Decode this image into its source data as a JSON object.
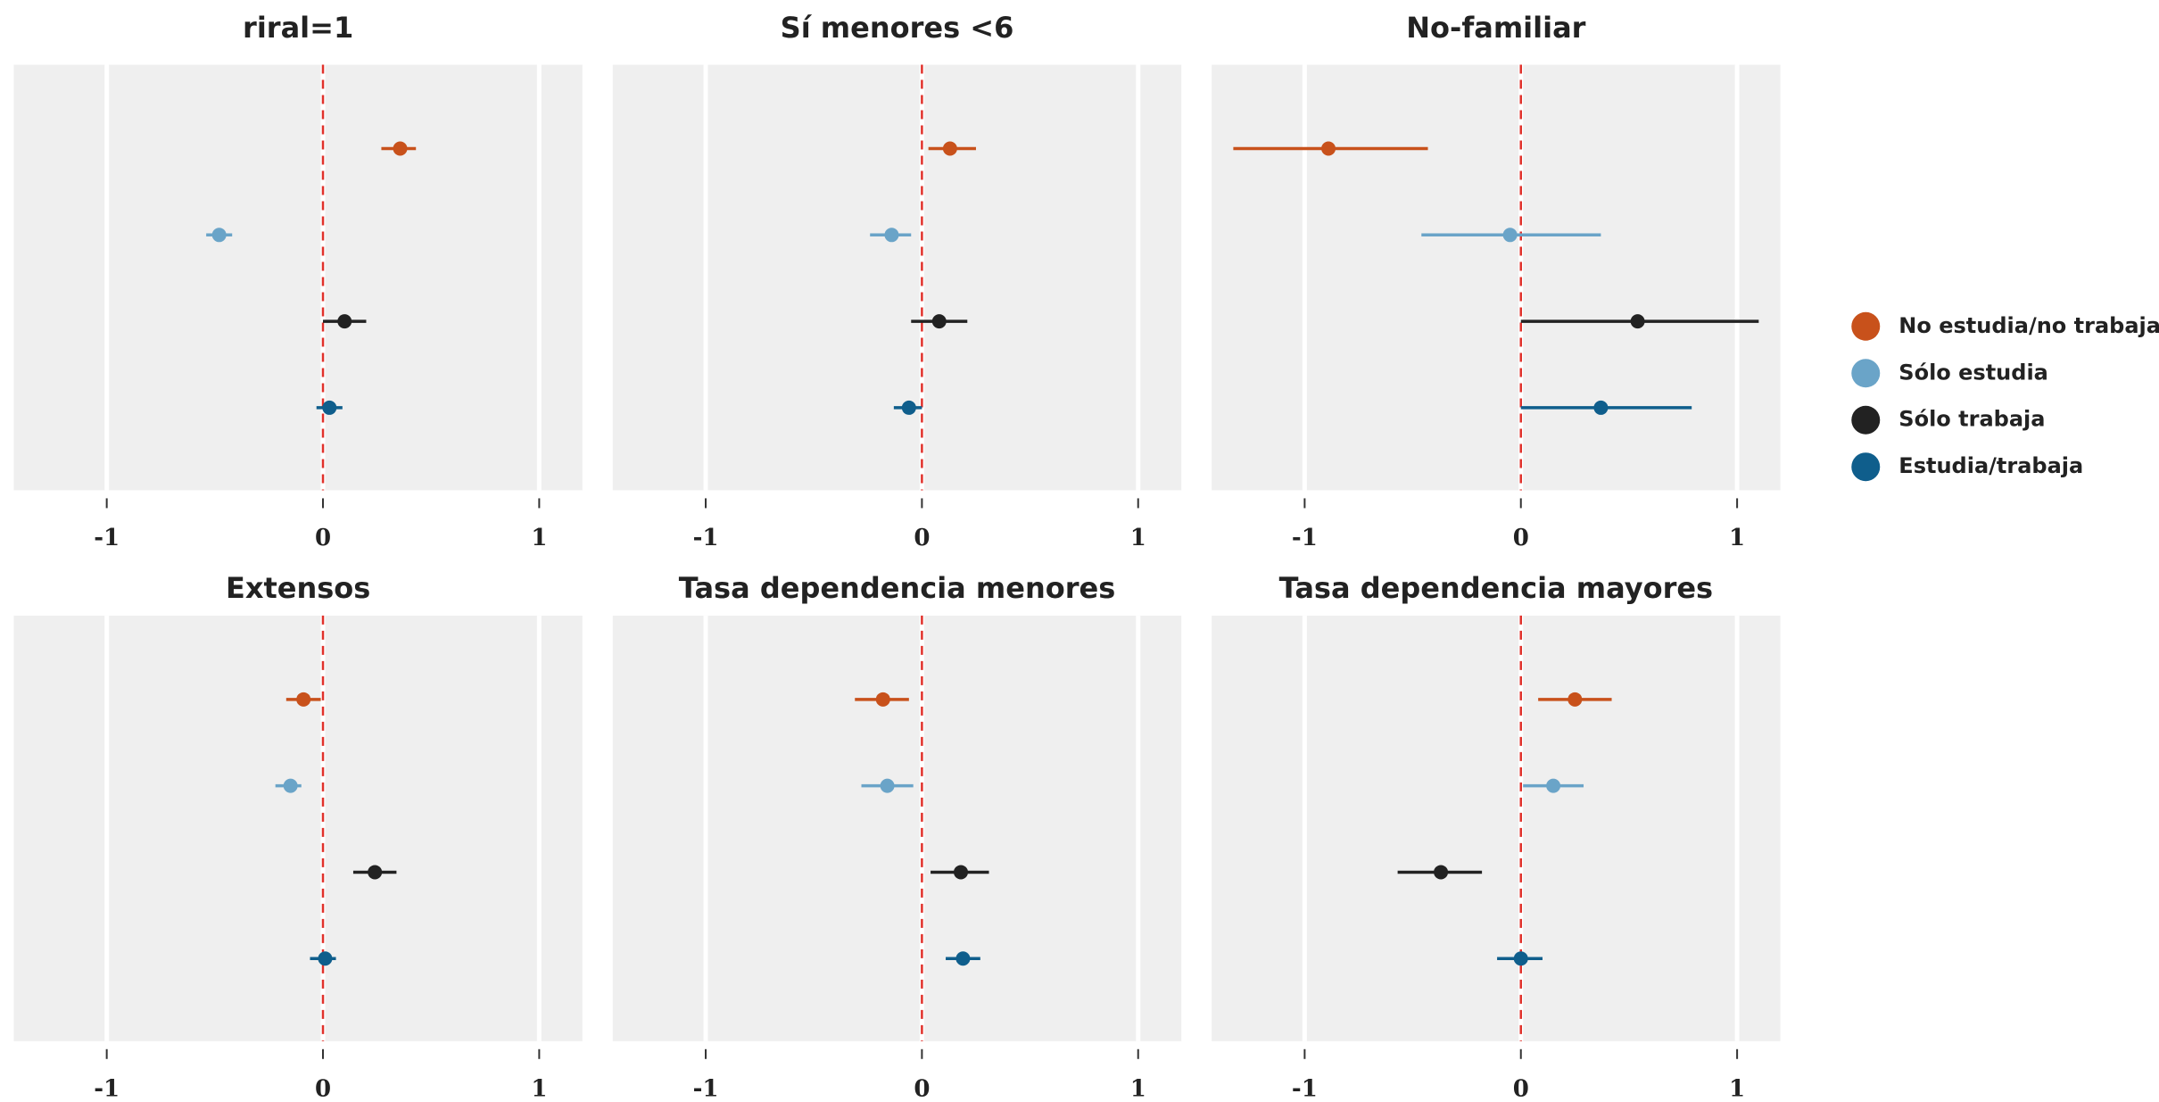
{
  "chart_data": [
    {
      "type": "dot",
      "title": "riral=1",
      "xlim": [
        -1.43,
        1.2
      ],
      "xticks": [
        -1,
        0,
        1
      ],
      "vline": 0,
      "grid": true,
      "series": [
        {
          "name": "No estudia/no trabaja",
          "color": "#c8511b",
          "values": [
            0.357
          ],
          "lower": [
            0.27
          ],
          "upper": [
            0.43
          ]
        },
        {
          "name": "Sólo estudia",
          "color": "#6aa4c8",
          "values": [
            -0.48
          ],
          "lower": [
            -0.54
          ],
          "upper": [
            -0.42
          ]
        },
        {
          "name": "Sólo trabaja",
          "color": "#222222",
          "values": [
            0.1
          ],
          "lower": [
            0.0
          ],
          "upper": [
            0.2
          ]
        },
        {
          "name": "Estudia/trabaja",
          "color": "#0f5e8c",
          "values": [
            0.03
          ],
          "lower": [
            -0.03
          ],
          "upper": [
            0.09
          ]
        }
      ]
    },
    {
      "type": "dot",
      "title": "Sí menores <6",
      "xlim": [
        -1.43,
        1.2
      ],
      "xticks": [
        -1,
        0,
        1
      ],
      "vline": 0,
      "grid": true,
      "series": [
        {
          "name": "No estudia/no trabaja",
          "color": "#c8511b",
          "values": [
            0.13
          ],
          "lower": [
            0.03
          ],
          "upper": [
            0.25
          ]
        },
        {
          "name": "Sólo estudia",
          "color": "#6aa4c8",
          "values": [
            -0.14
          ],
          "lower": [
            -0.24
          ],
          "upper": [
            -0.05
          ]
        },
        {
          "name": "Sólo trabaja",
          "color": "#222222",
          "values": [
            0.08
          ],
          "lower": [
            -0.05
          ],
          "upper": [
            0.21
          ]
        },
        {
          "name": "Estudia/trabaja",
          "color": "#0f5e8c",
          "values": [
            -0.06
          ],
          "lower": [
            -0.13
          ],
          "upper": [
            0.0
          ]
        }
      ]
    },
    {
      "type": "dot",
      "title": "No-familiar",
      "xlim": [
        -1.43,
        1.2
      ],
      "xticks": [
        -1,
        0,
        1
      ],
      "vline": 0,
      "grid": true,
      "series": [
        {
          "name": "No estudia/no trabaja",
          "color": "#c8511b",
          "values": [
            -0.89
          ],
          "lower": [
            -1.33
          ],
          "upper": [
            -0.43
          ]
        },
        {
          "name": "Sólo estudia",
          "color": "#6aa4c8",
          "values": [
            -0.05
          ],
          "lower": [
            -0.46
          ],
          "upper": [
            0.37
          ]
        },
        {
          "name": "Sólo trabaja",
          "color": "#222222",
          "values": [
            0.54
          ],
          "lower": [
            0.0
          ],
          "upper": [
            1.1
          ]
        },
        {
          "name": "Estudia/trabaja",
          "color": "#0f5e8c",
          "values": [
            0.37
          ],
          "lower": [
            0.0
          ],
          "upper": [
            0.79
          ]
        }
      ]
    },
    {
      "type": "dot",
      "title": "Extensos",
      "xlim": [
        -1.43,
        1.2
      ],
      "xticks": [
        -1,
        0,
        1
      ],
      "vline": 0,
      "grid": true,
      "series": [
        {
          "name": "No estudia/no trabaja",
          "color": "#c8511b",
          "values": [
            -0.09
          ],
          "lower": [
            -0.17
          ],
          "upper": [
            -0.01
          ]
        },
        {
          "name": "Sólo estudia",
          "color": "#6aa4c8",
          "values": [
            -0.15
          ],
          "lower": [
            -0.22
          ],
          "upper": [
            -0.1
          ]
        },
        {
          "name": "Sólo trabaja",
          "color": "#222222",
          "values": [
            0.24
          ],
          "lower": [
            0.14
          ],
          "upper": [
            0.34
          ]
        },
        {
          "name": "Estudia/trabaja",
          "color": "#0f5e8c",
          "values": [
            0.01
          ],
          "lower": [
            -0.06
          ],
          "upper": [
            0.06
          ]
        }
      ]
    },
    {
      "type": "dot",
      "title": "Tasa dependencia menores",
      "xlim": [
        -1.43,
        1.2
      ],
      "xticks": [
        -1,
        0,
        1
      ],
      "vline": 0,
      "grid": true,
      "series": [
        {
          "name": "No estudia/no trabaja",
          "color": "#c8511b",
          "values": [
            -0.18
          ],
          "lower": [
            -0.31
          ],
          "upper": [
            -0.06
          ]
        },
        {
          "name": "Sólo estudia",
          "color": "#6aa4c8",
          "values": [
            -0.16
          ],
          "lower": [
            -0.28
          ],
          "upper": [
            -0.04
          ]
        },
        {
          "name": "Sólo trabaja",
          "color": "#222222",
          "values": [
            0.18
          ],
          "lower": [
            0.04
          ],
          "upper": [
            0.31
          ]
        },
        {
          "name": "Estudia/trabaja",
          "color": "#0f5e8c",
          "values": [
            0.19
          ],
          "lower": [
            0.11
          ],
          "upper": [
            0.27
          ]
        }
      ]
    },
    {
      "type": "dot",
      "title": "Tasa dependencia mayores",
      "xlim": [
        -1.43,
        1.2
      ],
      "xticks": [
        -1,
        0,
        1
      ],
      "vline": 0,
      "grid": true,
      "series": [
        {
          "name": "No estudia/no trabaja",
          "color": "#c8511b",
          "values": [
            0.25
          ],
          "lower": [
            0.08
          ],
          "upper": [
            0.42
          ]
        },
        {
          "name": "Sólo estudia",
          "color": "#6aa4c8",
          "values": [
            0.15
          ],
          "lower": [
            0.01
          ],
          "upper": [
            0.29
          ]
        },
        {
          "name": "Sólo trabaja",
          "color": "#222222",
          "values": [
            -0.37
          ],
          "lower": [
            -0.57
          ],
          "upper": [
            -0.18
          ]
        },
        {
          "name": "Estudia/trabaja",
          "color": "#0f5e8c",
          "values": [
            0.0
          ],
          "lower": [
            -0.11
          ],
          "upper": [
            0.1
          ]
        }
      ]
    }
  ]
}
